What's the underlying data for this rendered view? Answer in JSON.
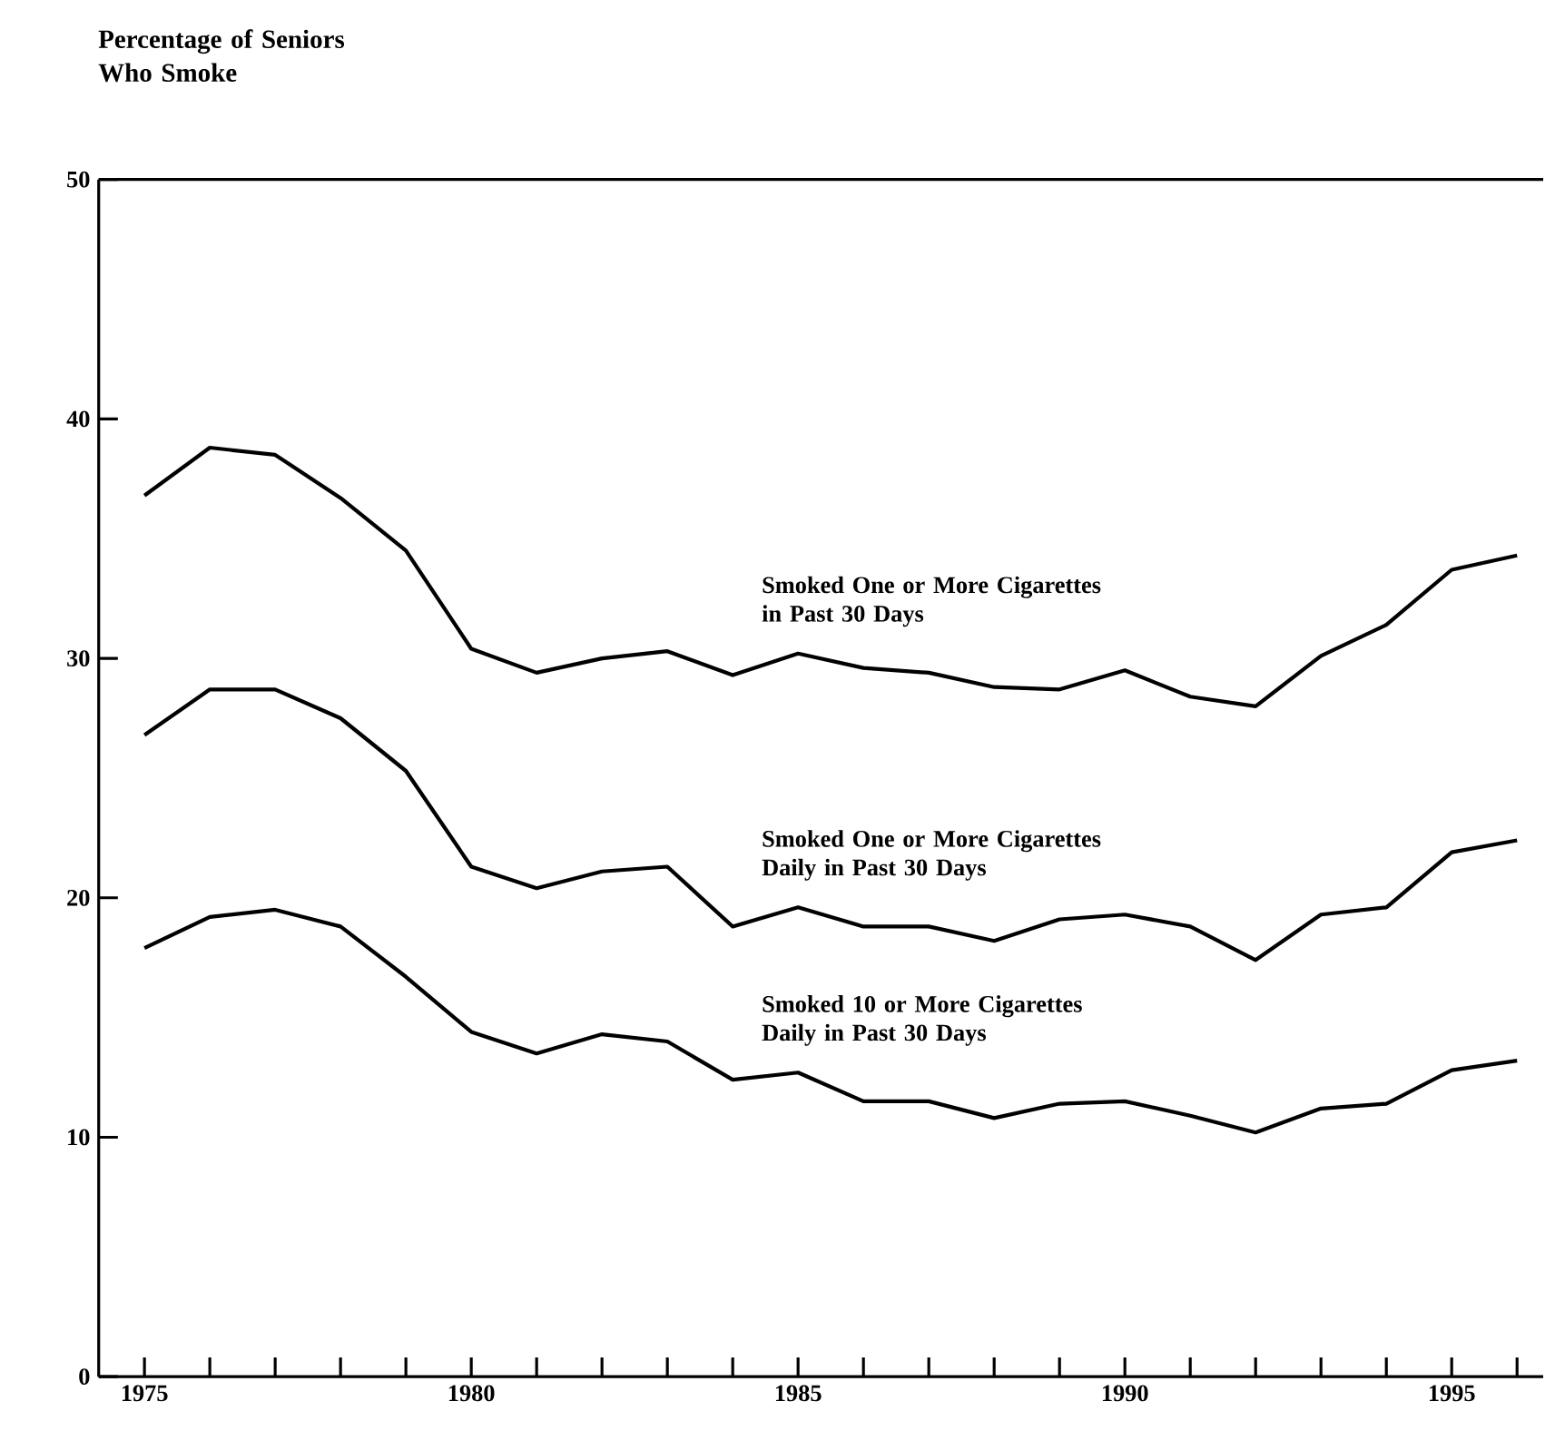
{
  "chart_data": {
    "type": "line",
    "ylabel": "Percentage of Seniors\nWho Smoke",
    "x": [
      1975,
      1976,
      1977,
      1978,
      1979,
      1980,
      1981,
      1982,
      1983,
      1984,
      1985,
      1986,
      1987,
      1988,
      1989,
      1990,
      1991,
      1992,
      1993,
      1994,
      1995,
      1996
    ],
    "xlim": [
      1974.3,
      1996.4
    ],
    "ylim": [
      0,
      50
    ],
    "xticks": [
      1975,
      {
        "value": 1976,
        "label": null
      },
      {
        "value": 1977,
        "label": null
      },
      {
        "value": 1978,
        "label": null
      },
      {
        "value": 1979,
        "label": null
      },
      1980,
      {
        "value": 1981,
        "label": null
      },
      {
        "value": 1982,
        "label": null
      },
      {
        "value": 1983,
        "label": null
      },
      {
        "value": 1984,
        "label": null
      },
      1985,
      {
        "value": 1986,
        "label": null
      },
      {
        "value": 1987,
        "label": null
      },
      {
        "value": 1988,
        "label": null
      },
      {
        "value": 1989,
        "label": null
      },
      1990,
      {
        "value": 1991,
        "label": null
      },
      {
        "value": 1992,
        "label": null
      },
      {
        "value": 1993,
        "label": null
      },
      {
        "value": 1994,
        "label": null
      },
      1995,
      {
        "value": 1996,
        "label": null
      }
    ],
    "yticks": [
      0,
      10,
      20,
      30,
      40,
      50
    ],
    "series": [
      {
        "name": "Smoked One or More Cigarettes\nin Past 30 Days",
        "color": "#000000",
        "values": [
          36.8,
          38.8,
          38.5,
          36.7,
          34.5,
          30.4,
          29.4,
          30.0,
          30.3,
          29.3,
          30.2,
          29.6,
          29.4,
          28.8,
          28.7,
          29.5,
          28.4,
          28.0,
          30.1,
          31.4,
          33.7,
          34.3
        ]
      },
      {
        "name": "Smoked One or More Cigarettes\nDaily in Past 30 Days",
        "color": "#000000",
        "values": [
          26.8,
          28.7,
          28.7,
          27.5,
          25.3,
          21.3,
          20.4,
          21.1,
          21.3,
          18.8,
          19.6,
          18.8,
          18.8,
          18.2,
          19.1,
          19.3,
          18.8,
          17.4,
          19.3,
          19.6,
          21.9,
          22.4
        ]
      },
      {
        "name": "Smoked 10 or More Cigarettes\nDaily in Past 30 Days",
        "color": "#000000",
        "values": [
          17.9,
          19.2,
          19.5,
          18.8,
          16.7,
          14.4,
          13.5,
          14.3,
          14.0,
          12.4,
          12.7,
          11.5,
          11.5,
          10.8,
          11.4,
          11.5,
          10.9,
          10.2,
          11.2,
          11.4,
          12.8,
          13.2
        ]
      }
    ]
  }
}
